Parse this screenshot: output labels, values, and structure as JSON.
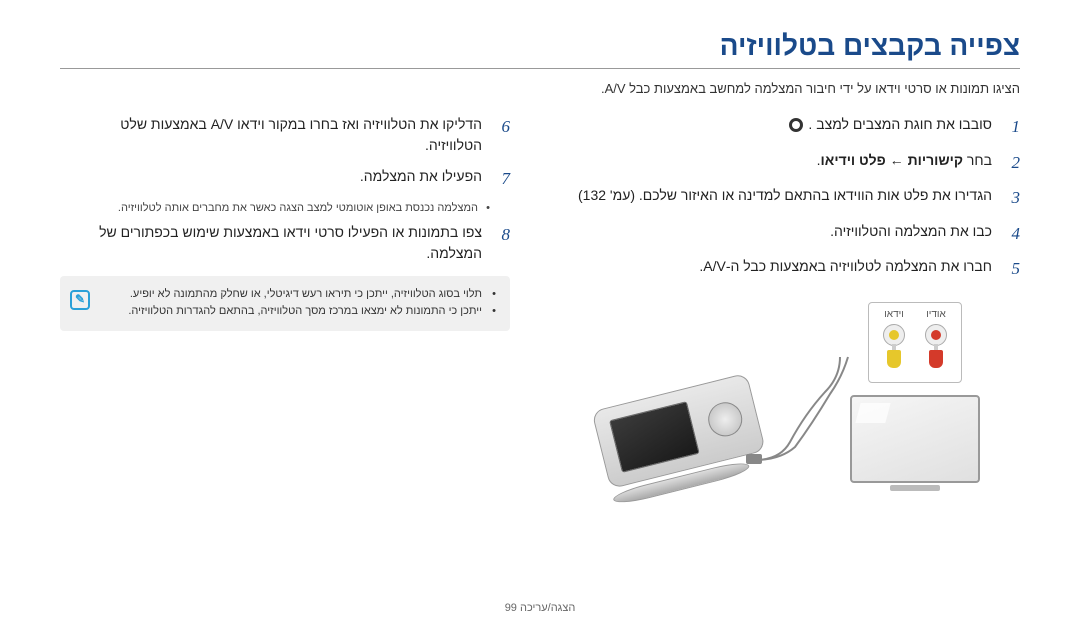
{
  "title": "צפייה בקבצים בטלוויזיה",
  "subtitle": "הציגו תמונות או סרטי וידאו על ידי חיבור המצלמה למחשב באמצעות כבל A/V.",
  "right_steps": [
    {
      "n": "1",
      "text": "סובבו את חוגת המצבים למצב ",
      "gear": true
    },
    {
      "n": "2",
      "text": "בחר <b>קישוריות</b> ← <b>פלט וידיאו</b>."
    },
    {
      "n": "3",
      "text": "הגדירו את פלט אות הווידאו בהתאם למדינה או האיזור שלכם. (עמ' 132)"
    },
    {
      "n": "4",
      "text": "כבו את המצלמה והטלוויזיה."
    },
    {
      "n": "5",
      "text": "חברו את המצלמה לטלוויזיה באמצעות כבל ה-A/V."
    }
  ],
  "left_steps": [
    {
      "n": "6",
      "text": "הדליקו את הטלוויזיה ואז בחרו במקור וידאו A/V באמצעות שלט הטלוויזיה."
    },
    {
      "n": "7",
      "text": "הפעילו את המצלמה."
    }
  ],
  "left_bullet": "המצלמה נכנסת באופן אוטומטי למצב הצגה כאשר את מחברים אותה לטלוויזיה.",
  "step8": {
    "n": "8",
    "text": "צפו בתמונות או הפעילו סרטי וידאו באמצעות שימוש בכפתורים של המצלמה."
  },
  "notes": [
    "תלוי בסוג הטלוויזיה, ייתכן כי תיראו רעש דיגיטלי, או שחלק מהתמונה לא יופיע.",
    "ייתכן כי התמונות לא ימצאו במרכז מסך הטלוויזיה, בהתאם להגדרות הטלוויזיה."
  ],
  "ports": {
    "audio": {
      "label": "אודיו",
      "color": "#d43a2a"
    },
    "video": {
      "label": "וידאו",
      "color": "#e6c72b"
    }
  },
  "footer": "הצגה/עריכה 99",
  "colors": {
    "title": "#1a4a8a",
    "noteIcon": "#2aa0d8",
    "cable": "#888888"
  }
}
